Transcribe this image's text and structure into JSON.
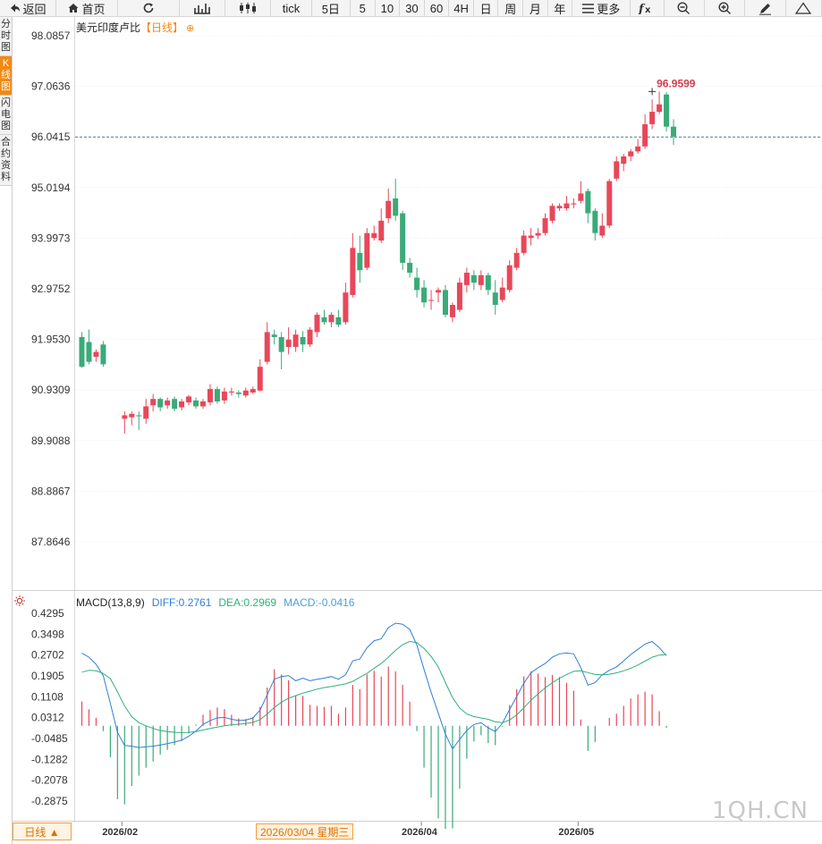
{
  "toolbar": {
    "items": [
      {
        "name": "back-button",
        "label": "返回",
        "icon": "back-arrow-icon",
        "w": 64
      },
      {
        "name": "home-button",
        "label": "首页",
        "icon": "home-icon",
        "w": 70
      },
      {
        "name": "refresh-button",
        "label": "",
        "icon": "refresh-icon",
        "w": 70
      },
      {
        "name": "chart-style-bar-button",
        "label": "",
        "icon": "ohlc-bars-icon",
        "w": 52
      },
      {
        "name": "chart-style-candle-button",
        "label": "",
        "icon": "candlestick-icon",
        "w": 52
      },
      {
        "name": "tick-button",
        "label": "tick",
        "icon": "",
        "w": 46
      },
      {
        "name": "5day-button",
        "label": "5日",
        "icon": "",
        "w": 44
      },
      {
        "name": "5min-button",
        "label": "5",
        "icon": "",
        "w": 28
      },
      {
        "name": "10min-button",
        "label": "10",
        "icon": "",
        "w": 28
      },
      {
        "name": "30min-button",
        "label": "30",
        "icon": "",
        "w": 28
      },
      {
        "name": "60min-button",
        "label": "60",
        "icon": "",
        "w": 28
      },
      {
        "name": "4h-button",
        "label": "4H",
        "icon": "",
        "w": 28
      },
      {
        "name": "day-button",
        "label": "日",
        "icon": "",
        "w": 28
      },
      {
        "name": "week-button",
        "label": "周",
        "icon": "",
        "w": 28
      },
      {
        "name": "month-button",
        "label": "月",
        "icon": "",
        "w": 28
      },
      {
        "name": "year-button",
        "label": "年",
        "icon": "",
        "w": 28
      },
      {
        "name": "more-button",
        "label": "更多",
        "icon": "menu-icon",
        "w": 66
      },
      {
        "name": "formula-button",
        "label": "",
        "icon": "fx-icon",
        "w": 38
      },
      {
        "name": "zoom-out-button",
        "label": "",
        "icon": "zoom-out-icon",
        "w": 46
      },
      {
        "name": "zoom-in-button",
        "label": "",
        "icon": "zoom-in-icon",
        "w": 46
      },
      {
        "name": "draw-button",
        "label": "",
        "icon": "pencil-icon",
        "w": 46
      },
      {
        "name": "collapse-button",
        "label": "",
        "icon": "triangle-up-icon",
        "w": 41
      }
    ]
  },
  "side_tabs": [
    {
      "name": "tab-timeshare",
      "label": "分时图",
      "active": false
    },
    {
      "name": "tab-kline",
      "label": "K线图",
      "active": true
    },
    {
      "name": "tab-flash",
      "label": "闪电图",
      "active": false
    },
    {
      "name": "tab-contract-info",
      "label": "合约资料",
      "active": false
    }
  ],
  "title": {
    "name": "美元印度卢比",
    "timeframe": "【日线】",
    "icon": "add-circle-icon"
  },
  "macd_legend": {
    "label": "MACD(13,8,9)",
    "diff": "DIFF:0.2761",
    "dea": "DEA:0.2969",
    "macd": "MACD:-0.0416",
    "icon": "settings-sun-icon"
  },
  "colors": {
    "up": "#e8475a",
    "down": "#3aaa78",
    "diff": "#2f7fd8",
    "dea": "#2fb07a",
    "dashed": "#3f7f9f",
    "grid": "#e6e6e6",
    "label": "#d63a4a"
  },
  "bottom": {
    "period_label": "日线 ▲",
    "crosshair_date": "2026/03/04 星期三",
    "watermark": "1QH.CN"
  },
  "chart_data": {
    "type": "candlestick",
    "title": "美元印度卢比【日线】",
    "y_ticks": [
      "98.0857",
      "97.0636",
      "96.0415",
      "95.0194",
      "93.9973",
      "92.9752",
      "91.9530",
      "90.9309",
      "89.9088",
      "88.8867",
      "87.8646"
    ],
    "ylim": [
      87.35,
      98.38
    ],
    "x_tick_labels": [
      {
        "label": "2026/02",
        "index": 6
      },
      {
        "label": "2026/04",
        "index": 48
      },
      {
        "label": "2026/05",
        "index": 70
      }
    ],
    "last_price": 96.04,
    "high_marker": {
      "label": "96.9599",
      "value": 96.9599,
      "index": 80
    },
    "candles": [
      [
        92.0,
        91.4,
        92.1,
        91.38
      ],
      [
        91.9,
        91.5,
        92.15,
        91.45
      ],
      [
        91.6,
        91.7,
        91.75,
        91.5
      ],
      [
        91.85,
        91.45,
        91.92,
        91.4
      ],
      null,
      null,
      [
        90.35,
        90.42,
        90.5,
        90.05
      ],
      [
        90.38,
        90.45,
        90.5,
        90.22
      ],
      [
        90.42,
        90.4,
        90.5,
        90.12
      ],
      [
        90.35,
        90.6,
        90.75,
        90.25
      ],
      [
        90.62,
        90.75,
        90.85,
        90.5
      ],
      [
        90.75,
        90.58,
        90.78,
        90.5
      ],
      [
        90.62,
        90.72,
        90.78,
        90.55
      ],
      [
        90.75,
        90.55,
        90.8,
        90.5
      ],
      [
        90.58,
        90.7,
        90.75,
        90.52
      ],
      [
        90.68,
        90.8,
        90.83,
        90.62
      ],
      [
        90.72,
        90.6,
        90.78,
        90.55
      ],
      [
        90.6,
        90.7,
        90.75,
        90.55
      ],
      [
        90.68,
        90.95,
        91.05,
        90.62
      ],
      [
        90.95,
        90.7,
        91.0,
        90.65
      ],
      [
        90.72,
        90.9,
        90.98,
        90.65
      ],
      [
        90.88,
        90.9,
        90.98,
        90.82
      ],
      [
        90.88,
        90.85,
        90.92,
        90.78
      ],
      [
        90.82,
        90.92,
        90.98,
        90.78
      ],
      [
        90.88,
        90.95,
        91.0,
        90.85
      ],
      [
        90.92,
        91.4,
        91.55,
        90.9
      ],
      [
        91.5,
        92.1,
        92.3,
        91.45
      ],
      [
        92.05,
        92.0,
        92.15,
        91.85
      ],
      [
        92.0,
        91.7,
        92.1,
        91.35
      ],
      [
        91.8,
        91.95,
        92.2,
        91.65
      ],
      [
        91.8,
        92.05,
        92.15,
        91.7
      ],
      [
        92.0,
        91.85,
        92.12,
        91.7
      ],
      [
        91.85,
        92.15,
        92.2,
        91.8
      ],
      [
        92.1,
        92.45,
        92.5,
        92.0
      ],
      [
        92.4,
        92.3,
        92.55,
        92.25
      ],
      [
        92.3,
        92.45,
        92.5,
        92.2
      ],
      [
        92.4,
        92.25,
        92.55,
        92.2
      ],
      [
        92.3,
        92.9,
        93.1,
        92.25
      ],
      [
        92.85,
        93.8,
        94.1,
        92.8
      ],
      [
        93.7,
        93.35,
        94.05,
        93.1
      ],
      [
        93.4,
        94.1,
        94.2,
        93.35
      ],
      [
        94.0,
        94.1,
        94.25,
        93.95
      ],
      [
        93.95,
        94.35,
        94.6,
        93.9
      ],
      [
        94.4,
        94.75,
        95.0,
        94.3
      ],
      [
        94.8,
        94.45,
        95.2,
        94.35
      ],
      [
        94.5,
        93.5,
        94.55,
        93.35
      ],
      [
        93.5,
        93.3,
        93.6,
        93.2
      ],
      [
        93.2,
        92.95,
        93.4,
        92.8
      ],
      [
        93.0,
        92.7,
        93.15,
        92.6
      ],
      [
        92.75,
        92.75,
        92.95,
        92.55
      ],
      [
        92.9,
        92.95,
        93.0,
        92.7
      ],
      [
        92.95,
        92.45,
        93.05,
        92.4
      ],
      [
        92.4,
        92.65,
        92.7,
        92.3
      ],
      [
        92.55,
        93.1,
        93.2,
        92.5
      ],
      [
        93.05,
        93.3,
        93.4,
        92.9
      ],
      [
        93.25,
        93.1,
        93.35,
        92.95
      ],
      [
        93.05,
        93.25,
        93.35,
        92.95
      ],
      [
        93.25,
        92.95,
        93.3,
        92.85
      ],
      [
        92.9,
        92.65,
        93.15,
        92.45
      ],
      [
        92.75,
        93.0,
        93.2,
        92.7
      ],
      [
        92.95,
        93.45,
        93.55,
        92.9
      ],
      [
        93.4,
        93.7,
        93.8,
        93.35
      ],
      [
        93.7,
        94.05,
        94.15,
        93.65
      ],
      [
        94.0,
        94.05,
        94.2,
        93.85
      ],
      [
        94.05,
        94.1,
        94.2,
        93.98
      ],
      [
        94.1,
        94.4,
        94.5,
        94.05
      ],
      [
        94.35,
        94.65,
        94.7,
        94.3
      ],
      [
        94.6,
        94.65,
        94.7,
        94.55
      ],
      [
        94.6,
        94.7,
        94.85,
        94.55
      ],
      [
        94.68,
        94.7,
        94.8,
        94.6
      ],
      [
        94.75,
        94.9,
        95.15,
        94.7
      ],
      [
        94.95,
        94.5,
        95.0,
        94.3
      ],
      [
        94.55,
        94.1,
        94.6,
        93.95
      ],
      [
        94.05,
        94.25,
        94.5,
        94.0
      ],
      [
        94.25,
        95.15,
        95.2,
        94.2
      ],
      [
        95.2,
        95.55,
        95.65,
        95.15
      ],
      [
        95.5,
        95.65,
        95.7,
        95.35
      ],
      [
        95.65,
        95.75,
        95.8,
        95.55
      ],
      [
        95.75,
        95.85,
        96.0,
        95.7
      ],
      [
        95.85,
        96.3,
        96.5,
        95.8
      ],
      [
        96.3,
        96.55,
        96.8,
        96.2
      ],
      [
        96.55,
        96.7,
        96.96,
        96.5
      ],
      [
        96.9,
        96.25,
        96.95,
        96.15
      ],
      [
        96.25,
        96.05,
        96.4,
        95.88
      ]
    ],
    "macd": {
      "ylim": [
        -0.3487,
        0.4656
      ],
      "y_ticks": [
        "0.4295",
        "0.3498",
        "0.2702",
        "0.1905",
        "0.1108",
        "0.0312",
        "-0.0485",
        "-0.1282",
        "-0.2078",
        "-0.2875"
      ],
      "diff": [
        0.278,
        0.262,
        0.235,
        0.192,
        0.085,
        -0.025,
        -0.075,
        -0.078,
        -0.083,
        -0.08,
        -0.078,
        -0.073,
        -0.068,
        -0.062,
        -0.055,
        -0.04,
        -0.02,
        0.005,
        0.02,
        0.03,
        0.032,
        0.025,
        0.02,
        0.022,
        0.03,
        0.06,
        0.118,
        0.178,
        0.188,
        0.192,
        0.172,
        0.182,
        0.172,
        0.178,
        0.182,
        0.188,
        0.178,
        0.195,
        0.248,
        0.255,
        0.298,
        0.325,
        0.332,
        0.375,
        0.392,
        0.388,
        0.368,
        0.308,
        0.215,
        0.128,
        0.048,
        -0.032,
        -0.088,
        -0.052,
        -0.018,
        0.005,
        0.012,
        -0.008,
        -0.022,
        0.01,
        0.062,
        0.112,
        0.162,
        0.202,
        0.222,
        0.238,
        0.262,
        0.275,
        0.278,
        0.275,
        0.222,
        0.155,
        0.165,
        0.195,
        0.212,
        0.225,
        0.248,
        0.272,
        0.292,
        0.312,
        0.322,
        0.298,
        0.268
      ],
      "dea": [
        0.205,
        0.212,
        0.21,
        0.2,
        0.18,
        0.13,
        0.075,
        0.035,
        0.012,
        0.0,
        -0.01,
        -0.018,
        -0.022,
        -0.025,
        -0.026,
        -0.025,
        -0.022,
        -0.016,
        -0.01,
        -0.005,
        0.0,
        0.004,
        0.006,
        0.009,
        0.013,
        0.024,
        0.045,
        0.07,
        0.09,
        0.105,
        0.115,
        0.125,
        0.132,
        0.14,
        0.146,
        0.15,
        0.155,
        0.16,
        0.17,
        0.185,
        0.2,
        0.22,
        0.238,
        0.262,
        0.288,
        0.31,
        0.322,
        0.318,
        0.295,
        0.265,
        0.225,
        0.165,
        0.108,
        0.068,
        0.045,
        0.035,
        0.03,
        0.025,
        0.015,
        0.012,
        0.022,
        0.042,
        0.068,
        0.098,
        0.122,
        0.145,
        0.165,
        0.182,
        0.196,
        0.208,
        0.21,
        0.203,
        0.196,
        0.195,
        0.197,
        0.202,
        0.21,
        0.22,
        0.232,
        0.247,
        0.262,
        0.27,
        0.272
      ],
      "hist": [
        0.093,
        0.063,
        0.03,
        -0.02,
        -0.12,
        -0.28,
        -0.3,
        -0.23,
        -0.19,
        -0.16,
        -0.136,
        -0.11,
        -0.092,
        -0.074,
        -0.058,
        -0.03,
        0.004,
        0.042,
        0.06,
        0.07,
        0.064,
        0.042,
        0.028,
        0.026,
        0.034,
        0.072,
        0.146,
        0.216,
        0.196,
        0.174,
        0.114,
        0.114,
        0.08,
        0.076,
        0.072,
        0.076,
        0.046,
        0.07,
        0.156,
        0.14,
        0.196,
        0.21,
        0.188,
        0.226,
        0.208,
        0.156,
        0.092,
        -0.02,
        -0.16,
        -0.274,
        -0.354,
        -0.394,
        -0.392,
        -0.24,
        -0.126,
        -0.06,
        -0.036,
        -0.066,
        -0.074,
        -0.004,
        0.08,
        0.14,
        0.188,
        0.208,
        0.2,
        0.186,
        0.194,
        0.186,
        0.164,
        0.134,
        0.024,
        -0.096,
        -0.062,
        0.0,
        0.03,
        0.046,
        0.076,
        0.104,
        0.12,
        0.13,
        0.12,
        0.056,
        -0.008
      ]
    }
  }
}
